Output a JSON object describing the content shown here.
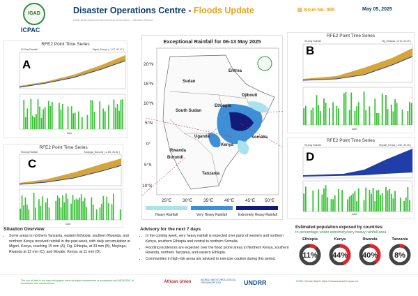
{
  "header": {
    "title_main": "Disaster Operations Centre - ",
    "title_accent": "Floods Update",
    "subtitle": "IGAD Multi-Hazard Early Warning Early Action - Situation Report",
    "issue_label": "Issue No. 085",
    "date": "May 05, 2025",
    "org_left": "ICPAC",
    "logo_text": "IGAD"
  },
  "map": {
    "title": "Exceptional Rainfall for 06-13 May 2025",
    "lat_labels": [
      "20°N",
      "15°N",
      "10°N",
      "5°N",
      "0°",
      "5°S",
      "10°S"
    ],
    "lon_labels": [
      "25°E",
      "30°E",
      "35°E",
      "40°E",
      "45°E",
      "50°E"
    ],
    "countries": [
      "Eritrea",
      "Sudan",
      "Djibouti",
      "Ethiopia",
      "South Sudan",
      "Somalia",
      "Uganda",
      "Kenya",
      "Rwanda",
      "Burundi",
      "Tanzania"
    ],
    "legend": [
      "Heavy Rainfall",
      "Very Heavy Rainfall",
      "Extremely Heavy Rainfall"
    ],
    "legend_colors": [
      "#a9e3ee",
      "#3f8fd6",
      "#141a7a"
    ]
  },
  "panels": {
    "A": {
      "letter": "A",
      "title": "RFE2 Point Time Series",
      "left": "90-Day Rainfall",
      "right": "Migori_Kenya ( -1.07, 34.47 )",
      "ylab_top": "Rainfall vs Normal (mm)",
      "ylab_bot": "Daily Rainfall (mm)",
      "xlabel": "Date"
    },
    "B": {
      "letter": "B",
      "title": "RFE2 Point Time Series",
      "left": "90-Day Rainfall",
      "right": "Fig_Ethiopia ( 8.14, 42.30 )",
      "ylab_top": "Rainfall vs Normal (mm)",
      "ylab_bot": "Daily Rainfall (mm)",
      "xlabel": "Date"
    },
    "C": {
      "letter": "C",
      "title": "RFE2 Point Time Series",
      "left": "90-Day Rainfall",
      "right": "Muyinga_Burundi ( -2.85, 30.32 )",
      "ylab_top": "Rainfall vs Normal (mm)",
      "ylab_bot": "Daily Rainfall (mm)",
      "xlabel": "Date"
    },
    "D": {
      "letter": "D",
      "title": "RFE2 Point Time Series",
      "left": "90-Day Rainfall",
      "right": "Moyale_Kenya ( 3.52, 39.05 )",
      "ylab_top": "Rainfall vs Normal (mm)",
      "ylab_bot": "Daily Rainfall (mm)",
      "xlabel": "Date"
    }
  },
  "overview": {
    "heading": "Situation Overview",
    "items": [
      "Some areas in northern Tanzania, eastern Ethiopia, southern Rwanda, and northern Kenya received rainfall in the past week, with daily accumulation in Migori, Kenya, reaching 15 mm (A), Fig, Ethiopia, at 33 mm (B), Muyinga, Rwanda at 12 mm (C), and Moyale, Kenya, at 11 mm (D)."
    ]
  },
  "advisory": {
    "heading": "Advisory for the next 7 days",
    "items": [
      "In the coming week, very heavy rainfall is expected over parts of western and northern Kenya, southern Ethiopia and central to northern Somalia.",
      "Flooding incidences are expected over the flood prone areas in Northern Kenya, southern Rwanda, northern Tanzania, and eastern Ethiopia.",
      "Communities in high-risk areas are advised to exercise caution during this period."
    ]
  },
  "exposure": {
    "heading": "Estimated population exposed by countries:",
    "subheading": "In percentage under extremely/very heavy rainfall area",
    "countries": [
      {
        "name": "Ethiopia",
        "pct": "11%",
        "value": 11
      },
      {
        "name": "Kenya",
        "pct": "44%",
        "value": 44
      },
      {
        "name": "Rwanda",
        "pct": "40%",
        "value": 40
      },
      {
        "name": "Tanzania",
        "pct": "8%",
        "value": 8
      }
    ]
  },
  "footer": {
    "left": "The use of data in the map and graphs does not imply endorsement or acceptance by IGAD/ICPAC of boundaries and names shown.",
    "orgs": [
      "African Union",
      "WORLD METEOROLOGICAL ORGANIZATION",
      "UNDRR"
    ],
    "right": "ICPAC Climate Watch: https://eahazardswatch.icpac.net"
  }
}
